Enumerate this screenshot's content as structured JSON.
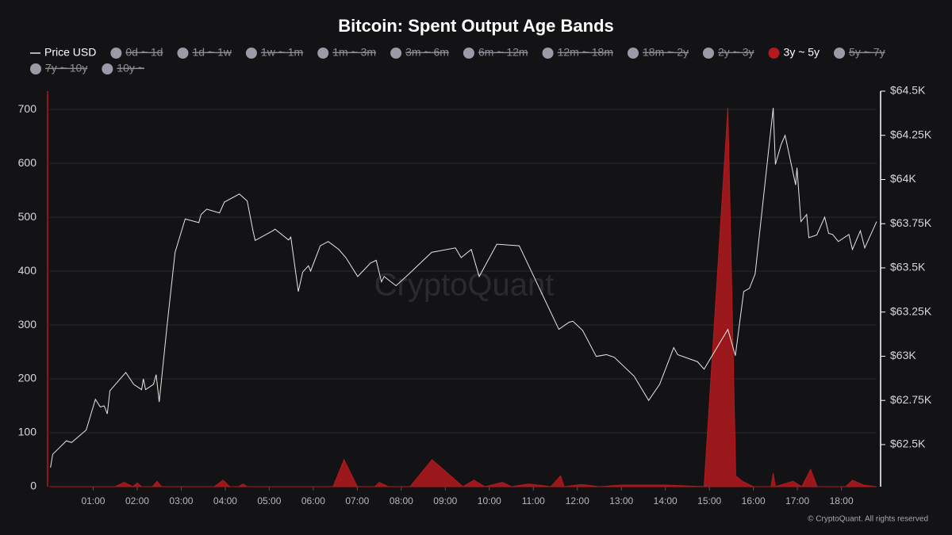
{
  "chart_data": {
    "type": "line",
    "title": "Bitcoin: Spent Output Age Bands",
    "watermark": "CryptoQuant",
    "footer": "© CryptoQuant. All rights reserved",
    "xlim": [
      0,
      18.8
    ],
    "xticks": [
      {
        "value": 1,
        "label": "01:00"
      },
      {
        "value": 2,
        "label": "02:00"
      },
      {
        "value": 3,
        "label": "03:00"
      },
      {
        "value": 4,
        "label": "04:00"
      },
      {
        "value": 5,
        "label": "05:00"
      },
      {
        "value": 6,
        "label": "06:00"
      },
      {
        "value": 7,
        "label": "07:00"
      },
      {
        "value": 8,
        "label": "08:00"
      },
      {
        "value": 9,
        "label": "09:00"
      },
      {
        "value": 10,
        "label": "10:00"
      },
      {
        "value": 11,
        "label": "11:00"
      },
      {
        "value": 12,
        "label": "12:00"
      },
      {
        "value": 13,
        "label": "13:00"
      },
      {
        "value": 14,
        "label": "14:00"
      },
      {
        "value": 15,
        "label": "15:00"
      },
      {
        "value": 16,
        "label": "16:00"
      },
      {
        "value": 17,
        "label": "17:00"
      },
      {
        "value": 18,
        "label": "18:00"
      }
    ],
    "ylim": [
      0,
      734
    ],
    "yticks": [
      0,
      100,
      200,
      300,
      400,
      500,
      600,
      700
    ],
    "y2lim": [
      62262,
      64500
    ],
    "y2ticks": [
      {
        "value": 62500,
        "label": "$62.5K"
      },
      {
        "value": 62750,
        "label": "$62.75K"
      },
      {
        "value": 63000,
        "label": "$63K"
      },
      {
        "value": 63250,
        "label": "$63.25K"
      },
      {
        "value": 63500,
        "label": "$63.5K"
      },
      {
        "value": 63750,
        "label": "$63.75K"
      },
      {
        "value": 64000,
        "label": "$64K"
      },
      {
        "value": 64250,
        "label": "$64.25K"
      },
      {
        "value": 64500,
        "label": "$64.5K"
      }
    ],
    "grid": true,
    "series": [
      {
        "name": "Price USD",
        "color": "#e6e6e6",
        "axis": "y2",
        "style": "line",
        "visible": true,
        "x": [
          0.03,
          0.08,
          0.39,
          0.51,
          0.84,
          1.05,
          1.16,
          1.25,
          1.32,
          1.38,
          1.74,
          1.92,
          2.1,
          2.14,
          2.19,
          2.37,
          2.43,
          2.5,
          2.68,
          2.86,
          3.09,
          3.4,
          3.45,
          3.58,
          3.87,
          3.98,
          4.32,
          4.5,
          4.63,
          4.68,
          5.08,
          5.13,
          5.44,
          5.49,
          5.66,
          5.76,
          5.89,
          5.94,
          6.16,
          6.34,
          6.58,
          6.74,
          7.01,
          7.3,
          7.43,
          7.55,
          7.61,
          7.88,
          8.15,
          8.69,
          9.23,
          9.36,
          9.59,
          9.77,
          10.17,
          10.68,
          11.58,
          11.81,
          11.9,
          12.12,
          12.43,
          12.66,
          12.84,
          13.29,
          13.62,
          13.87,
          14.19,
          14.28,
          14.73,
          14.88,
          15.42,
          15.59,
          15.78,
          15.91,
          16.04,
          16.45,
          16.5,
          16.63,
          16.72,
          16.96,
          16.99,
          17.08,
          17.21,
          17.26,
          17.44,
          17.62,
          17.71,
          17.8,
          17.93,
          18.17,
          18.25,
          18.43,
          18.53,
          18.8
        ],
        "values": [
          62370,
          62445,
          62521,
          62512,
          62582,
          62756,
          62713,
          62719,
          62674,
          62805,
          62908,
          62841,
          62811,
          62872,
          62811,
          62841,
          62896,
          62741,
          63177,
          63588,
          63777,
          63756,
          63802,
          63832,
          63811,
          63872,
          63918,
          63878,
          63710,
          63655,
          63710,
          63719,
          63658,
          63674,
          63366,
          63476,
          63512,
          63482,
          63625,
          63649,
          63604,
          63558,
          63451,
          63527,
          63543,
          63421,
          63451,
          63399,
          63460,
          63588,
          63613,
          63558,
          63604,
          63451,
          63634,
          63625,
          63152,
          63192,
          63198,
          63146,
          62999,
          63009,
          62994,
          62887,
          62750,
          62841,
          63049,
          63009,
          62969,
          62927,
          63152,
          63003,
          63366,
          63384,
          63466,
          64405,
          64085,
          64198,
          64250,
          63969,
          64067,
          63762,
          63802,
          63671,
          63686,
          63787,
          63695,
          63689,
          63649,
          63689,
          63604,
          63710,
          63613,
          63762
        ]
      },
      {
        "name": "0d ~ 1d",
        "color": "#9b9aa6",
        "visible": false
      },
      {
        "name": "1d ~ 1w",
        "color": "#9b9aa6",
        "visible": false
      },
      {
        "name": "1w ~ 1m",
        "color": "#9b9aa6",
        "visible": false
      },
      {
        "name": "1m ~ 3m",
        "color": "#9b9aa6",
        "visible": false
      },
      {
        "name": "3m ~ 6m",
        "color": "#9b9aa6",
        "visible": false
      },
      {
        "name": "6m ~ 12m",
        "color": "#9b9aa6",
        "visible": false
      },
      {
        "name": "12m ~ 18m",
        "color": "#9b9aa6",
        "visible": false
      },
      {
        "name": "18m ~ 2y",
        "color": "#9b9aa6",
        "visible": false
      },
      {
        "name": "2y ~ 3y",
        "color": "#9b9aa6",
        "visible": false
      },
      {
        "name": "3y ~ 5y",
        "color": "#b3191d",
        "style": "area",
        "visible": true,
        "x": [
          0,
          1.5,
          1.7,
          1.9,
          2.0,
          2.1,
          2.35,
          2.45,
          2.55,
          3.75,
          3.95,
          4.1,
          4.3,
          4.4,
          4.5,
          6.45,
          6.7,
          7.0,
          7.4,
          7.5,
          7.7,
          8.2,
          8.7,
          9.4,
          9.65,
          9.9,
          10.3,
          10.5,
          10.9,
          11.4,
          11.62,
          11.7,
          12.1,
          12.5,
          13.0,
          14.0,
          14.88,
          15.42,
          15.6,
          15.75,
          16.0,
          16.4,
          16.45,
          16.5,
          16.9,
          17.1,
          17.3,
          17.45,
          18.1,
          18.25,
          18.5,
          18.8
        ],
        "values": [
          0,
          0,
          8,
          0,
          7,
          0,
          0,
          10,
          0,
          0,
          12,
          0,
          0,
          5,
          0,
          0,
          50,
          0,
          0,
          8,
          0,
          0,
          50,
          0,
          12,
          0,
          8,
          0,
          5,
          0,
          20,
          0,
          4,
          0,
          3,
          3,
          0,
          703,
          20,
          10,
          0,
          0,
          25,
          0,
          10,
          0,
          32,
          0,
          0,
          12,
          3,
          0
        ]
      },
      {
        "name": "5y ~ 7y",
        "color": "#9b9aa6",
        "visible": false
      },
      {
        "name": "7y ~ 10y",
        "color": "#9b9aa6",
        "visible": false
      },
      {
        "name": "10y ~",
        "color": "#9b9aa6",
        "visible": false
      }
    ]
  }
}
